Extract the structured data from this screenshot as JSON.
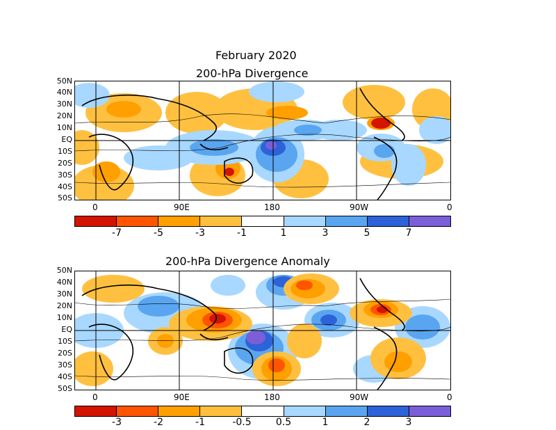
{
  "figure_title": "February 2020",
  "panels": [
    {
      "title": "200-hPa Divergence",
      "lat_labels": [
        "50N",
        "40N",
        "30N",
        "20N",
        "10N",
        "EQ",
        "10S",
        "20S",
        "30S",
        "40S",
        "50S"
      ],
      "lon_labels": [
        "0",
        "90E",
        "180",
        "90W",
        "0"
      ],
      "colorbar": {
        "colors": [
          "#d31400",
          "#ff5500",
          "#ff9f00",
          "#ffc040",
          "#ffffff",
          "#a8d8ff",
          "#5aa5f0",
          "#2d62d8",
          "#7a5fd8"
        ],
        "labels": [
          "-7",
          "-5",
          "-3",
          "-1",
          "1",
          "3",
          "5",
          "7"
        ]
      }
    },
    {
      "title": "200-hPa Divergence Anomaly",
      "lat_labels": [
        "50N",
        "40N",
        "30N",
        "20N",
        "10N",
        "EQ",
        "10S",
        "20S",
        "30S",
        "40S",
        "50S"
      ],
      "lon_labels": [
        "0",
        "90E",
        "180",
        "90W",
        "0"
      ],
      "colorbar": {
        "colors": [
          "#d31400",
          "#ff5500",
          "#ff9f00",
          "#ffc040",
          "#ffffff",
          "#a8d8ff",
          "#5aa5f0",
          "#2d62d8",
          "#7a5fd8"
        ],
        "labels": [
          "-3",
          "-2",
          "-1",
          "-0.5",
          "0.5",
          "1",
          "2",
          "3"
        ]
      }
    }
  ]
}
